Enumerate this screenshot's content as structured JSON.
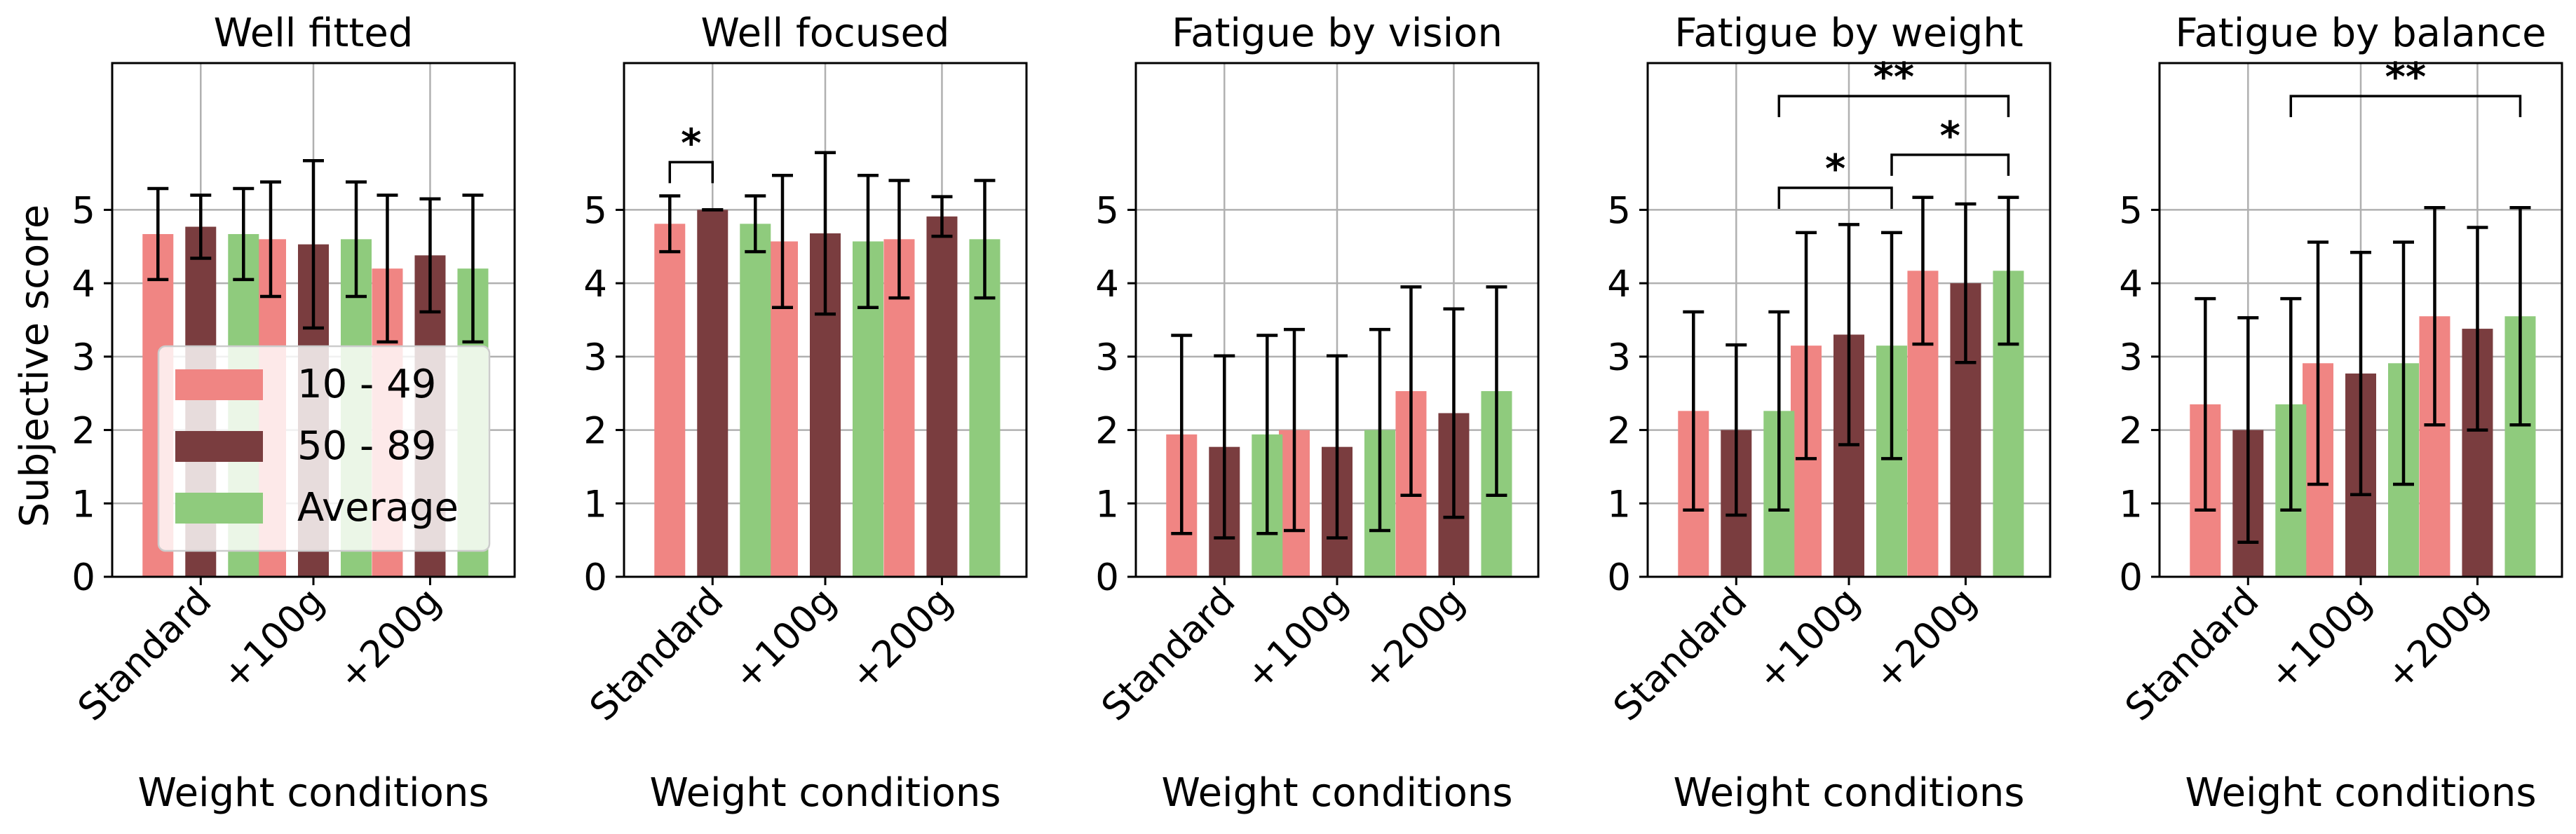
{
  "chart_data": {
    "type": "bar",
    "shared_ylabel": "Subjective score",
    "legend": {
      "placement": "lower-left of first panel",
      "entries": [
        {
          "name": "10 - 49",
          "color": "#f08583"
        },
        {
          "name": "50 - 89",
          "color": "#7a3d3f"
        },
        {
          "name": "Average",
          "color": "#8fcb7d"
        }
      ]
    },
    "panels": [
      {
        "title": "Well fitted",
        "xlabel": "Weight conditions",
        "categories": [
          "Standard",
          "+100g",
          "+200g"
        ],
        "yticks": [
          0,
          1,
          2,
          3,
          4,
          5
        ],
        "ylim": [
          0,
          7
        ],
        "grid": true,
        "series": [
          {
            "name": "10 - 49",
            "values": [
              4.67,
              4.6,
              4.2
            ],
            "err": [
              0.62,
              0.78,
              1.0
            ]
          },
          {
            "name": "50 - 89",
            "values": [
              4.77,
              4.53,
              4.38
            ],
            "err": [
              0.43,
              1.14,
              0.77
            ]
          },
          {
            "name": "Average",
            "values": [
              4.67,
              4.6,
              4.2
            ],
            "err": [
              0.62,
              0.78,
              1.0
            ]
          }
        ],
        "significance": []
      },
      {
        "title": "Well focused",
        "xlabel": "Weight conditions",
        "categories": [
          "Standard",
          "+100g",
          "+200g"
        ],
        "yticks": [
          0,
          1,
          2,
          3,
          4,
          5
        ],
        "ylim": [
          0,
          7
        ],
        "grid": true,
        "series": [
          {
            "name": "10 - 49",
            "values": [
              4.81,
              4.57,
              4.6
            ],
            "err": [
              0.38,
              0.9,
              0.8
            ]
          },
          {
            "name": "50 - 89",
            "values": [
              5.0,
              4.68,
              4.91
            ],
            "err": [
              0.0,
              1.1,
              0.27
            ]
          },
          {
            "name": "Average",
            "values": [
              4.81,
              4.57,
              4.6
            ],
            "err": [
              0.38,
              0.9,
              0.8
            ]
          }
        ],
        "significance": [
          {
            "from": "Standard/10 - 49",
            "to": "Standard/50 - 89",
            "label": "*",
            "level": 5.65
          }
        ]
      },
      {
        "title": "Fatigue by vision",
        "xlabel": "Weight conditions",
        "categories": [
          "Standard",
          "+100g",
          "+200g"
        ],
        "yticks": [
          0,
          1,
          2,
          3,
          4,
          5
        ],
        "ylim": [
          0,
          7
        ],
        "grid": true,
        "series": [
          {
            "name": "10 - 49",
            "values": [
              1.94,
              2.0,
              2.53
            ],
            "err": [
              1.35,
              1.37,
              1.42
            ]
          },
          {
            "name": "50 - 89",
            "values": [
              1.77,
              1.77,
              2.23
            ],
            "err": [
              1.24,
              1.24,
              1.42
            ]
          },
          {
            "name": "Average",
            "values": [
              1.94,
              2.0,
              2.53
            ],
            "err": [
              1.35,
              1.37,
              1.42
            ]
          }
        ],
        "significance": []
      },
      {
        "title": "Fatigue by weight",
        "xlabel": "Weight conditions",
        "categories": [
          "Standard",
          "+100g",
          "+200g"
        ],
        "yticks": [
          0,
          1,
          2,
          3,
          4,
          5
        ],
        "ylim": [
          0,
          7
        ],
        "grid": true,
        "series": [
          {
            "name": "10 - 49",
            "values": [
              2.26,
              3.15,
              4.17
            ],
            "err": [
              1.35,
              1.54,
              1.0
            ]
          },
          {
            "name": "50 - 89",
            "values": [
              2.0,
              3.3,
              4.0
            ],
            "err": [
              1.16,
              1.5,
              1.08
            ]
          },
          {
            "name": "Average",
            "values": [
              2.26,
              3.15,
              4.17
            ],
            "err": [
              1.35,
              1.54,
              1.0
            ]
          }
        ],
        "significance": [
          {
            "from": "Standard/Average",
            "to": "+100g/Average",
            "label": "*",
            "level": 5.3
          },
          {
            "from": "+100g/Average",
            "to": "+200g/Average",
            "label": "*",
            "level": 5.75
          },
          {
            "from": "Standard/Average",
            "to": "+200g/Average",
            "label": "**",
            "level": 6.55
          }
        ]
      },
      {
        "title": "Fatigue by balance",
        "xlabel": "Weight conditions",
        "categories": [
          "Standard",
          "+100g",
          "+200g"
        ],
        "yticks": [
          0,
          1,
          2,
          3,
          4,
          5
        ],
        "ylim": [
          0,
          7
        ],
        "grid": true,
        "series": [
          {
            "name": "10 - 49",
            "values": [
              2.35,
              2.91,
              3.55
            ],
            "err": [
              1.44,
              1.65,
              1.48
            ]
          },
          {
            "name": "50 - 89",
            "values": [
              2.0,
              2.77,
              3.38
            ],
            "err": [
              1.53,
              1.65,
              1.38
            ]
          },
          {
            "name": "Average",
            "values": [
              2.35,
              2.91,
              3.55
            ],
            "err": [
              1.44,
              1.65,
              1.48
            ]
          }
        ],
        "significance": [
          {
            "from": "Standard/Average",
            "to": "+200g/Average",
            "label": "**",
            "level": 6.55
          }
        ]
      }
    ]
  }
}
